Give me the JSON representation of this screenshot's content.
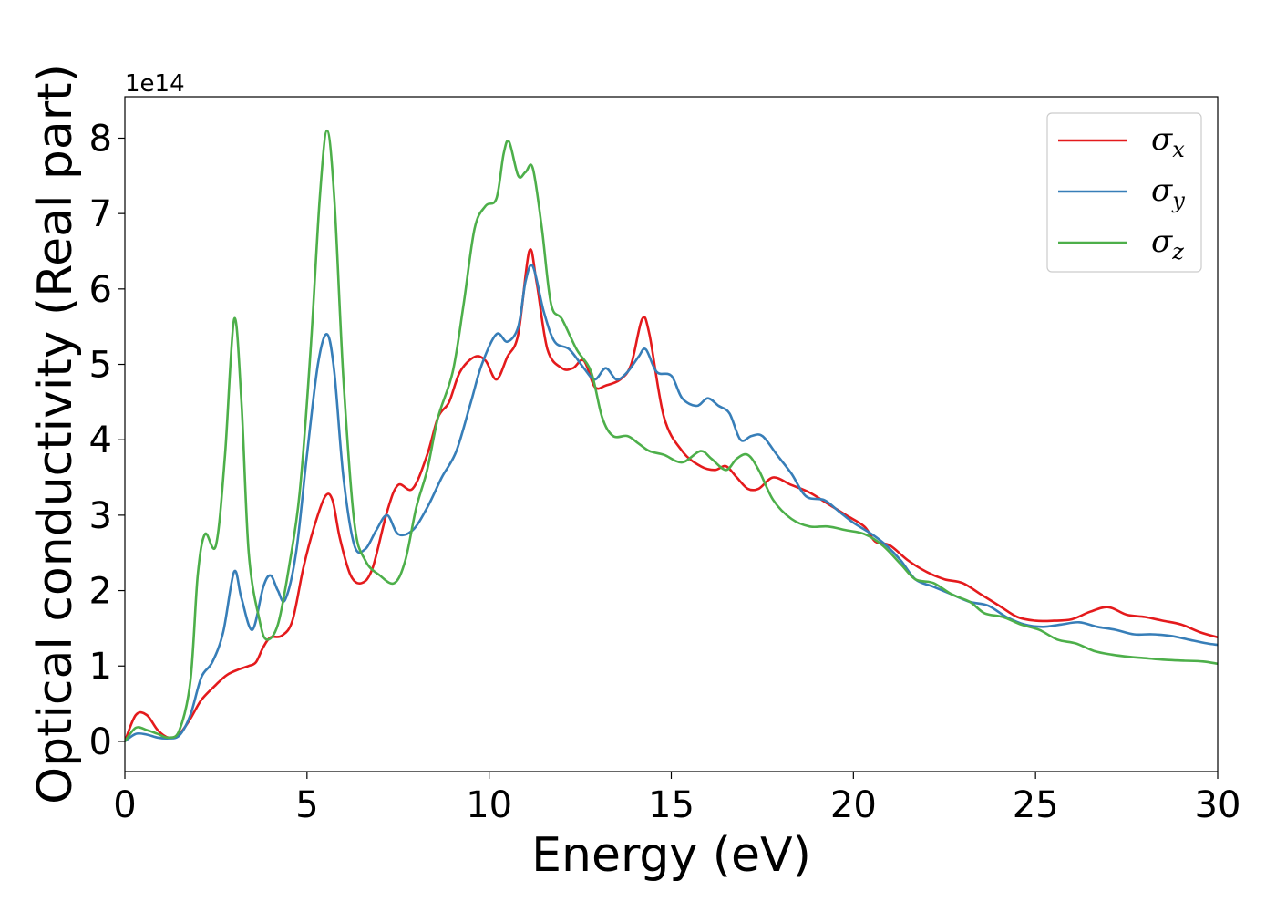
{
  "chart_data": {
    "type": "line",
    "xlabel": "Energy (eV)",
    "ylabel": "Optical conductivity (Real part)",
    "y_offset_text": "1e14",
    "xlim": [
      0,
      30
    ],
    "ylim": [
      -0.4,
      8.55
    ],
    "x_ticks": [
      0,
      5,
      10,
      15,
      20,
      25,
      30
    ],
    "y_ticks": [
      0,
      1,
      2,
      3,
      4,
      5,
      6,
      7,
      8
    ],
    "legend_position": "top-right",
    "grid": false,
    "series": [
      {
        "name": "σx",
        "symbol": "σ",
        "subscript": "x",
        "color": "#e41a1c",
        "points": [
          [
            0,
            0
          ],
          [
            0.3,
            0.35
          ],
          [
            0.6,
            0.35
          ],
          [
            0.9,
            0.15
          ],
          [
            1.2,
            0.05
          ],
          [
            1.5,
            0.1
          ],
          [
            1.8,
            0.3
          ],
          [
            2.1,
            0.55
          ],
          [
            2.5,
            0.75
          ],
          [
            2.8,
            0.88
          ],
          [
            3.1,
            0.95
          ],
          [
            3.4,
            1.0
          ],
          [
            3.6,
            1.05
          ],
          [
            3.8,
            1.25
          ],
          [
            4.0,
            1.38
          ],
          [
            4.3,
            1.4
          ],
          [
            4.6,
            1.6
          ],
          [
            4.9,
            2.3
          ],
          [
            5.2,
            2.85
          ],
          [
            5.5,
            3.25
          ],
          [
            5.7,
            3.2
          ],
          [
            5.9,
            2.7
          ],
          [
            6.2,
            2.2
          ],
          [
            6.5,
            2.1
          ],
          [
            6.8,
            2.3
          ],
          [
            7.2,
            3.05
          ],
          [
            7.5,
            3.4
          ],
          [
            7.9,
            3.35
          ],
          [
            8.3,
            3.8
          ],
          [
            8.6,
            4.3
          ],
          [
            8.9,
            4.5
          ],
          [
            9.2,
            4.9
          ],
          [
            9.6,
            5.1
          ],
          [
            9.9,
            5.05
          ],
          [
            10.2,
            4.8
          ],
          [
            10.5,
            5.1
          ],
          [
            10.8,
            5.4
          ],
          [
            11.1,
            6.5
          ],
          [
            11.3,
            6.1
          ],
          [
            11.6,
            5.2
          ],
          [
            12.0,
            4.95
          ],
          [
            12.3,
            4.95
          ],
          [
            12.6,
            5.05
          ],
          [
            12.9,
            4.7
          ],
          [
            13.2,
            4.72
          ],
          [
            13.6,
            4.8
          ],
          [
            13.9,
            5.0
          ],
          [
            14.2,
            5.6
          ],
          [
            14.4,
            5.4
          ],
          [
            14.8,
            4.3
          ],
          [
            15.3,
            3.85
          ],
          [
            15.8,
            3.65
          ],
          [
            16.2,
            3.6
          ],
          [
            16.5,
            3.65
          ],
          [
            16.8,
            3.5
          ],
          [
            17.1,
            3.35
          ],
          [
            17.4,
            3.35
          ],
          [
            17.8,
            3.5
          ],
          [
            18.3,
            3.4
          ],
          [
            18.8,
            3.3
          ],
          [
            19.3,
            3.15
          ],
          [
            19.8,
            3.0
          ],
          [
            20.3,
            2.85
          ],
          [
            20.6,
            2.65
          ],
          [
            21.0,
            2.6
          ],
          [
            21.5,
            2.4
          ],
          [
            22.0,
            2.25
          ],
          [
            22.5,
            2.15
          ],
          [
            23.0,
            2.1
          ],
          [
            23.5,
            1.95
          ],
          [
            24.0,
            1.8
          ],
          [
            24.5,
            1.65
          ],
          [
            25.0,
            1.6
          ],
          [
            25.5,
            1.6
          ],
          [
            26.0,
            1.62
          ],
          [
            26.5,
            1.72
          ],
          [
            27.0,
            1.78
          ],
          [
            27.5,
            1.68
          ],
          [
            28.0,
            1.65
          ],
          [
            28.5,
            1.6
          ],
          [
            29.0,
            1.55
          ],
          [
            29.5,
            1.45
          ],
          [
            30.0,
            1.38
          ]
        ]
      },
      {
        "name": "σy",
        "symbol": "σ",
        "subscript": "y",
        "color": "#377eb8",
        "points": [
          [
            0,
            0
          ],
          [
            0.3,
            0.1
          ],
          [
            0.6,
            0.09
          ],
          [
            0.9,
            0.05
          ],
          [
            1.2,
            0.04
          ],
          [
            1.5,
            0.08
          ],
          [
            1.8,
            0.35
          ],
          [
            2.1,
            0.85
          ],
          [
            2.4,
            1.05
          ],
          [
            2.7,
            1.45
          ],
          [
            3.0,
            2.25
          ],
          [
            3.2,
            1.9
          ],
          [
            3.5,
            1.48
          ],
          [
            3.8,
            2.05
          ],
          [
            4.0,
            2.2
          ],
          [
            4.2,
            2.0
          ],
          [
            4.4,
            1.88
          ],
          [
            4.7,
            2.5
          ],
          [
            5.0,
            3.8
          ],
          [
            5.3,
            5.0
          ],
          [
            5.55,
            5.4
          ],
          [
            5.75,
            4.9
          ],
          [
            6.0,
            3.5
          ],
          [
            6.3,
            2.6
          ],
          [
            6.6,
            2.55
          ],
          [
            6.9,
            2.8
          ],
          [
            7.2,
            3.0
          ],
          [
            7.5,
            2.75
          ],
          [
            7.9,
            2.8
          ],
          [
            8.3,
            3.1
          ],
          [
            8.7,
            3.5
          ],
          [
            9.1,
            3.85
          ],
          [
            9.5,
            4.5
          ],
          [
            9.8,
            5.0
          ],
          [
            10.2,
            5.4
          ],
          [
            10.5,
            5.3
          ],
          [
            10.8,
            5.5
          ],
          [
            11.0,
            6.1
          ],
          [
            11.2,
            6.3
          ],
          [
            11.5,
            5.7
          ],
          [
            11.8,
            5.3
          ],
          [
            12.2,
            5.2
          ],
          [
            12.6,
            4.95
          ],
          [
            12.9,
            4.8
          ],
          [
            13.2,
            4.95
          ],
          [
            13.5,
            4.8
          ],
          [
            13.8,
            4.9
          ],
          [
            14.1,
            5.1
          ],
          [
            14.3,
            5.2
          ],
          [
            14.6,
            4.9
          ],
          [
            15.0,
            4.85
          ],
          [
            15.3,
            4.55
          ],
          [
            15.7,
            4.45
          ],
          [
            16.0,
            4.55
          ],
          [
            16.3,
            4.45
          ],
          [
            16.6,
            4.35
          ],
          [
            16.9,
            4.0
          ],
          [
            17.2,
            4.05
          ],
          [
            17.5,
            4.05
          ],
          [
            17.9,
            3.8
          ],
          [
            18.3,
            3.55
          ],
          [
            18.7,
            3.25
          ],
          [
            19.2,
            3.2
          ],
          [
            19.6,
            3.05
          ],
          [
            20.0,
            2.9
          ],
          [
            20.5,
            2.75
          ],
          [
            20.9,
            2.6
          ],
          [
            21.3,
            2.4
          ],
          [
            21.7,
            2.15
          ],
          [
            22.2,
            2.05
          ],
          [
            22.7,
            1.95
          ],
          [
            23.2,
            1.85
          ],
          [
            23.7,
            1.8
          ],
          [
            24.2,
            1.65
          ],
          [
            24.7,
            1.55
          ],
          [
            25.2,
            1.52
          ],
          [
            25.7,
            1.55
          ],
          [
            26.2,
            1.58
          ],
          [
            26.7,
            1.52
          ],
          [
            27.2,
            1.48
          ],
          [
            27.7,
            1.42
          ],
          [
            28.2,
            1.42
          ],
          [
            28.7,
            1.4
          ],
          [
            29.2,
            1.35
          ],
          [
            29.7,
            1.3
          ],
          [
            30.0,
            1.28
          ]
        ]
      },
      {
        "name": "σz",
        "symbol": "σ",
        "subscript": "z",
        "color": "#4daf4a",
        "points": [
          [
            0,
            0
          ],
          [
            0.3,
            0.18
          ],
          [
            0.6,
            0.15
          ],
          [
            0.9,
            0.1
          ],
          [
            1.2,
            0.05
          ],
          [
            1.5,
            0.15
          ],
          [
            1.8,
            0.8
          ],
          [
            2.0,
            2.2
          ],
          [
            2.2,
            2.75
          ],
          [
            2.5,
            2.6
          ],
          [
            2.75,
            3.8
          ],
          [
            3.0,
            5.6
          ],
          [
            3.2,
            4.5
          ],
          [
            3.4,
            2.5
          ],
          [
            3.7,
            1.6
          ],
          [
            3.9,
            1.35
          ],
          [
            4.2,
            1.55
          ],
          [
            4.5,
            2.3
          ],
          [
            4.8,
            3.3
          ],
          [
            5.1,
            5.2
          ],
          [
            5.35,
            7.2
          ],
          [
            5.55,
            8.1
          ],
          [
            5.75,
            7.2
          ],
          [
            6.0,
            4.8
          ],
          [
            6.3,
            2.9
          ],
          [
            6.6,
            2.4
          ],
          [
            7.0,
            2.2
          ],
          [
            7.4,
            2.1
          ],
          [
            7.7,
            2.4
          ],
          [
            8.0,
            3.1
          ],
          [
            8.3,
            3.6
          ],
          [
            8.6,
            4.3
          ],
          [
            9.0,
            4.9
          ],
          [
            9.3,
            5.8
          ],
          [
            9.6,
            6.8
          ],
          [
            9.9,
            7.1
          ],
          [
            10.2,
            7.2
          ],
          [
            10.4,
            7.8
          ],
          [
            10.55,
            7.95
          ],
          [
            10.8,
            7.5
          ],
          [
            11.0,
            7.55
          ],
          [
            11.2,
            7.6
          ],
          [
            11.45,
            6.8
          ],
          [
            11.7,
            5.8
          ],
          [
            12.0,
            5.6
          ],
          [
            12.4,
            5.2
          ],
          [
            12.8,
            4.9
          ],
          [
            13.1,
            4.3
          ],
          [
            13.4,
            4.05
          ],
          [
            13.8,
            4.05
          ],
          [
            14.1,
            3.95
          ],
          [
            14.4,
            3.85
          ],
          [
            14.8,
            3.8
          ],
          [
            15.3,
            3.7
          ],
          [
            15.8,
            3.85
          ],
          [
            16.1,
            3.75
          ],
          [
            16.5,
            3.6
          ],
          [
            16.8,
            3.75
          ],
          [
            17.1,
            3.8
          ],
          [
            17.4,
            3.6
          ],
          [
            17.8,
            3.2
          ],
          [
            18.3,
            2.95
          ],
          [
            18.8,
            2.85
          ],
          [
            19.3,
            2.85
          ],
          [
            19.8,
            2.8
          ],
          [
            20.3,
            2.75
          ],
          [
            20.8,
            2.6
          ],
          [
            21.3,
            2.35
          ],
          [
            21.7,
            2.15
          ],
          [
            22.2,
            2.1
          ],
          [
            22.7,
            1.95
          ],
          [
            23.2,
            1.85
          ],
          [
            23.6,
            1.7
          ],
          [
            24.1,
            1.65
          ],
          [
            24.6,
            1.55
          ],
          [
            25.1,
            1.48
          ],
          [
            25.6,
            1.35
          ],
          [
            26.1,
            1.3
          ],
          [
            26.6,
            1.2
          ],
          [
            27.1,
            1.15
          ],
          [
            27.6,
            1.12
          ],
          [
            28.1,
            1.1
          ],
          [
            28.6,
            1.08
          ],
          [
            29.1,
            1.07
          ],
          [
            29.6,
            1.06
          ],
          [
            30.0,
            1.03
          ]
        ]
      }
    ]
  }
}
